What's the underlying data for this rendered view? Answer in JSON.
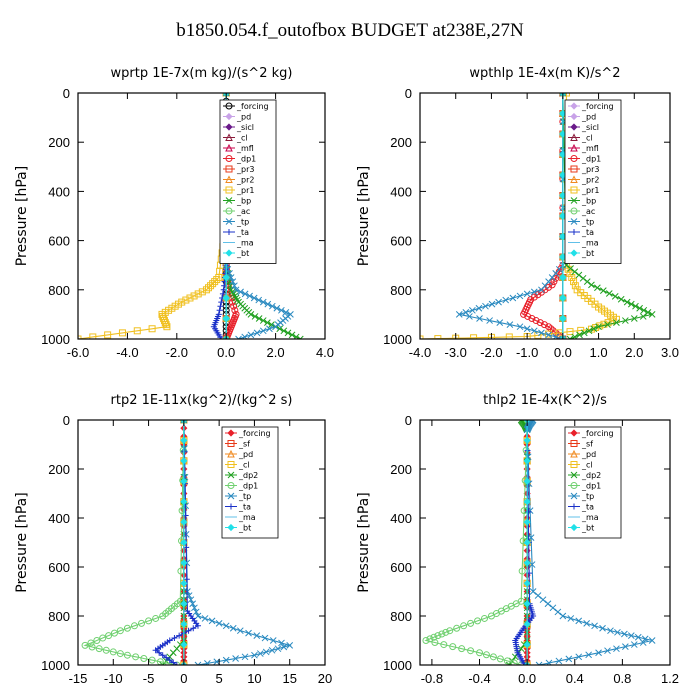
{
  "title": "b1850.054.f_outofbox  BUDGET at238E,27N",
  "chart_data": [
    {
      "type": "line",
      "title": "wprtp  1E-7x(m kg)/(s^2 kg)",
      "ylabel": "Pressure [hPa]",
      "xlim": [
        -6.0,
        4.0
      ],
      "ylim": [
        1000,
        0
      ],
      "xticks": [
        "-6.0",
        "-4.0",
        "-2.0",
        "0.0",
        "2.0",
        "4.0"
      ],
      "xtick_values": [
        -6,
        -4,
        -2,
        0,
        2,
        4
      ],
      "yticks": [
        0,
        200,
        400,
        600,
        800,
        1000
      ],
      "legend_position": "top-right",
      "series": [
        {
          "name": "_forcing",
          "color": "#000000",
          "marker": "circle",
          "p": [
            0,
            200,
            400,
            600,
            800,
            900,
            1000
          ],
          "x": [
            0,
            0,
            0,
            0,
            0,
            0,
            0
          ]
        },
        {
          "name": "_pd",
          "color": "#c8a2e8",
          "marker": "diamond",
          "p": [
            0,
            500,
            1000
          ],
          "x": [
            0,
            0,
            0
          ]
        },
        {
          "name": "_sicl",
          "color": "#6a1a8a",
          "marker": "diamond",
          "p": [
            0,
            500,
            1000
          ],
          "x": [
            0,
            0,
            0
          ]
        },
        {
          "name": "_cl",
          "color": "#8b1a3a",
          "marker": "triangle",
          "p": [
            0,
            500,
            1000
          ],
          "x": [
            0,
            0,
            0
          ]
        },
        {
          "name": "_mfl",
          "color": "#c8004a",
          "marker": "triangle",
          "p": [
            0,
            500,
            1000
          ],
          "x": [
            0,
            0,
            0
          ]
        },
        {
          "name": "_dp1",
          "color": "#e8202a",
          "marker": "circle",
          "p": [
            0,
            700,
            800,
            900,
            950,
            1000
          ],
          "x": [
            0,
            0,
            0.1,
            0.4,
            0.2,
            0
          ]
        },
        {
          "name": "_pr3",
          "color": "#e83a1a",
          "marker": "square",
          "p": [
            0,
            500,
            1000
          ],
          "x": [
            0,
            0,
            0
          ]
        },
        {
          "name": "_pr2",
          "color": "#f08a20",
          "marker": "triangle",
          "p": [
            0,
            500,
            1000
          ],
          "x": [
            0,
            0,
            0
          ]
        },
        {
          "name": "_pr1",
          "color": "#f0c020",
          "marker": "square",
          "p": [
            0,
            600,
            750,
            800,
            850,
            900,
            950,
            1000
          ],
          "x": [
            0,
            -0.1,
            -0.3,
            -0.8,
            -1.8,
            -2.6,
            -2.4,
            -6.0
          ]
        },
        {
          "name": "_bp",
          "color": "#20a020",
          "marker": "x",
          "p": [
            0,
            700,
            800,
            850,
            900,
            950,
            1000
          ],
          "x": [
            0,
            0,
            0.2,
            0.5,
            1.0,
            2.0,
            3.0
          ]
        },
        {
          "name": "_ac",
          "color": "#70d070",
          "marker": "circle",
          "p": [
            0,
            500,
            1000
          ],
          "x": [
            0,
            0,
            0
          ]
        },
        {
          "name": "_tp",
          "color": "#2a8ac0",
          "marker": "x",
          "p": [
            0,
            700,
            800,
            850,
            900,
            950,
            1000
          ],
          "x": [
            0,
            0,
            0.4,
            1.5,
            2.6,
            2.0,
            0.5
          ]
        },
        {
          "name": "_ta",
          "color": "#1a30c8",
          "marker": "plus",
          "p": [
            0,
            700,
            800,
            900,
            950,
            1000
          ],
          "x": [
            0,
            0,
            -0.1,
            -0.3,
            -0.5,
            -0.2
          ]
        },
        {
          "name": "_ma",
          "color": "#60c0e8",
          "marker": "dash",
          "p": [
            0,
            500,
            1000
          ],
          "x": [
            0,
            0,
            0
          ]
        },
        {
          "name": "_bt",
          "color": "#20e0e8",
          "marker": "diamond",
          "p": [
            0,
            500,
            1000
          ],
          "x": [
            0,
            0,
            0
          ]
        }
      ]
    },
    {
      "type": "line",
      "title": "wpthlp  1E-4x(m K)/s^2",
      "ylabel": "Pressure [hPa]",
      "xlim": [
        -4.0,
        3.0
      ],
      "ylim": [
        1000,
        0
      ],
      "xticks": [
        "-4.0",
        "-3.0",
        "-2.0",
        "-1.0",
        "0.0",
        "1.0",
        "2.0",
        "3.0"
      ],
      "xtick_values": [
        -4,
        -3,
        -2,
        -1,
        0,
        1,
        2,
        3
      ],
      "yticks": [
        0,
        200,
        400,
        600,
        800,
        1000
      ],
      "legend_position": "top-right",
      "series": [
        {
          "name": "_forcing",
          "color": "#c8a2e8",
          "marker": "diamond",
          "p": [
            0,
            500,
            1000
          ],
          "x": [
            0,
            0,
            0
          ]
        },
        {
          "name": "_pd",
          "color": "#c8a2e8",
          "marker": "diamond",
          "p": [
            0,
            500,
            1000
          ],
          "x": [
            0,
            0,
            0
          ]
        },
        {
          "name": "_sicl",
          "color": "#6a1a8a",
          "marker": "diamond",
          "p": [
            0,
            500,
            1000
          ],
          "x": [
            0,
            0,
            0
          ]
        },
        {
          "name": "_cl",
          "color": "#8b1a3a",
          "marker": "triangle",
          "p": [
            0,
            500,
            1000
          ],
          "x": [
            0,
            0,
            0
          ]
        },
        {
          "name": "_mfl",
          "color": "#c8004a",
          "marker": "triangle",
          "p": [
            0,
            500,
            1000
          ],
          "x": [
            0,
            0,
            0
          ]
        },
        {
          "name": "_dp1",
          "color": "#e8202a",
          "marker": "circle",
          "p": [
            0,
            700,
            780,
            840,
            900,
            950,
            1000
          ],
          "x": [
            0,
            0,
            -0.3,
            -0.9,
            -1.1,
            -0.4,
            0
          ]
        },
        {
          "name": "_pr3",
          "color": "#e83a1a",
          "marker": "square",
          "p": [
            0,
            500,
            1000
          ],
          "x": [
            0,
            0,
            0
          ]
        },
        {
          "name": "_pr2",
          "color": "#f08a20",
          "marker": "triangle",
          "p": [
            0,
            500,
            1000
          ],
          "x": [
            0,
            0,
            0
          ]
        },
        {
          "name": "_pr1",
          "color": "#f0c020",
          "marker": "square",
          "p": [
            0,
            700,
            800,
            870,
            920,
            960,
            990,
            1000
          ],
          "x": [
            0.1,
            0.1,
            0.4,
            1.0,
            1.5,
            0.8,
            -1.0,
            -4.0
          ]
        },
        {
          "name": "_bp",
          "color": "#20a020",
          "marker": "x",
          "p": [
            0,
            700,
            780,
            850,
            900,
            950,
            1000
          ],
          "x": [
            0,
            0.1,
            0.8,
            1.8,
            2.5,
            1.0,
            0.2
          ]
        },
        {
          "name": "_ac",
          "color": "#70d070",
          "marker": "circle",
          "p": [
            0,
            500,
            1000
          ],
          "x": [
            0,
            0,
            0
          ]
        },
        {
          "name": "_tp",
          "color": "#2a8ac0",
          "marker": "x",
          "p": [
            0,
            700,
            800,
            850,
            900,
            950,
            1000
          ],
          "x": [
            0,
            0,
            -0.6,
            -1.8,
            -2.9,
            -1.2,
            0
          ]
        },
        {
          "name": "_ta",
          "color": "#1a30c8",
          "marker": "plus",
          "p": [
            0,
            500,
            1000
          ],
          "x": [
            0,
            0,
            0
          ]
        },
        {
          "name": "_ma",
          "color": "#60c0e8",
          "marker": "dash",
          "p": [
            0,
            500,
            1000
          ],
          "x": [
            0,
            0,
            0
          ]
        },
        {
          "name": "_bt",
          "color": "#20e0e8",
          "marker": "diamond",
          "p": [
            0,
            500,
            1000
          ],
          "x": [
            0,
            0,
            0
          ]
        }
      ]
    },
    {
      "type": "line",
      "title": "rtp2  1E-11x(kg^2)/(kg^2 s)",
      "ylabel": "Pressure [hPa]",
      "xlim": [
        -15,
        20
      ],
      "ylim": [
        1000,
        0
      ],
      "xticks": [
        "-15",
        "-10",
        "-5",
        "0",
        "5",
        "10",
        "15",
        "20"
      ],
      "xtick_values": [
        -15,
        -10,
        -5,
        0,
        5,
        10,
        15,
        20
      ],
      "yticks": [
        0,
        200,
        400,
        600,
        800,
        1000
      ],
      "legend_position": "top-right",
      "series": [
        {
          "name": "_forcing",
          "color": "#e8202a",
          "marker": "diamond",
          "p": [
            0,
            200,
            400,
            600,
            800,
            900,
            1000
          ],
          "x": [
            0,
            0,
            0,
            0,
            0,
            0,
            0
          ]
        },
        {
          "name": "_sf",
          "color": "#e83a1a",
          "marker": "square",
          "p": [
            0,
            500,
            1000
          ],
          "x": [
            0,
            0,
            0
          ]
        },
        {
          "name": "_pd",
          "color": "#f08a20",
          "marker": "triangle",
          "p": [
            0,
            500,
            1000
          ],
          "x": [
            0,
            0,
            0
          ]
        },
        {
          "name": "_cl",
          "color": "#f0c020",
          "marker": "square",
          "p": [
            0,
            500,
            1000
          ],
          "x": [
            0,
            0,
            0
          ]
        },
        {
          "name": "_dp2",
          "color": "#20a020",
          "marker": "x",
          "p": [
            0,
            700,
            900,
            1000
          ],
          "x": [
            0,
            0,
            0,
            -3
          ]
        },
        {
          "name": "_dp1",
          "color": "#70d070",
          "marker": "circle",
          "p": [
            0,
            740,
            800,
            860,
            920,
            960,
            1000
          ],
          "x": [
            0,
            -0.5,
            -3,
            -9,
            -14,
            -8,
            -1
          ]
        },
        {
          "name": "_tp",
          "color": "#2a8ac0",
          "marker": "x",
          "p": [
            0,
            700,
            800,
            860,
            920,
            960,
            1000
          ],
          "x": [
            0,
            0.5,
            2,
            8,
            15,
            10,
            2
          ]
        },
        {
          "name": "_ta",
          "color": "#1a30c8",
          "marker": "plus",
          "p": [
            0,
            780,
            840,
            900,
            940,
            1000
          ],
          "x": [
            0,
            0.5,
            2,
            -2,
            -4,
            -1
          ]
        },
        {
          "name": "_ma",
          "color": "#60c0e8",
          "marker": "dash",
          "p": [
            0,
            500,
            1000
          ],
          "x": [
            0,
            0,
            0
          ]
        },
        {
          "name": "_bt",
          "color": "#20e0e8",
          "marker": "diamond",
          "p": [
            0,
            500,
            1000
          ],
          "x": [
            0,
            0,
            0
          ]
        }
      ]
    },
    {
      "type": "line",
      "title": "thlp2  1E-4x(K^2)/s",
      "ylabel": "Pressure [hPa]",
      "xlim": [
        -0.9,
        1.2
      ],
      "ylim": [
        1000,
        0
      ],
      "xticks": [
        "-0.8",
        "-0.4",
        "0.0",
        "0.4",
        "0.8",
        "1.2"
      ],
      "xtick_values": [
        -0.8,
        -0.4,
        0.0,
        0.4,
        0.8,
        1.2
      ],
      "yticks": [
        0,
        200,
        400,
        600,
        800,
        1000
      ],
      "legend_position": "top-right",
      "series": [
        {
          "name": "_forcing",
          "color": "#e8202a",
          "marker": "diamond",
          "p": [
            0,
            200,
            400,
            600,
            800,
            900,
            1000
          ],
          "x": [
            0,
            0,
            0,
            0,
            0,
            0,
            0
          ]
        },
        {
          "name": "_sf",
          "color": "#e83a1a",
          "marker": "square",
          "p": [
            0,
            500,
            1000
          ],
          "x": [
            0,
            0,
            0
          ]
        },
        {
          "name": "_pd",
          "color": "#f08a20",
          "marker": "triangle",
          "p": [
            0,
            500,
            1000
          ],
          "x": [
            0,
            0,
            0
          ]
        },
        {
          "name": "_cl",
          "color": "#f0c020",
          "marker": "square",
          "p": [
            0,
            500,
            1000
          ],
          "x": [
            0,
            0,
            0
          ]
        },
        {
          "name": "_dp2",
          "color": "#20a020",
          "marker": "x",
          "p": [
            0,
            20,
            40,
            700,
            900,
            1000
          ],
          "x": [
            -0.05,
            -0.02,
            0,
            0,
            0,
            -0.15
          ]
        },
        {
          "name": "_dp1",
          "color": "#70d070",
          "marker": "circle",
          "p": [
            0,
            740,
            800,
            860,
            900,
            950,
            1000
          ],
          "x": [
            0,
            -0.05,
            -0.3,
            -0.65,
            -0.85,
            -0.4,
            -0.05
          ]
        },
        {
          "name": "_tp",
          "color": "#2a8ac0",
          "marker": "x",
          "p": [
            0,
            20,
            40,
            700,
            800,
            860,
            900,
            950,
            1000
          ],
          "x": [
            0.05,
            0.02,
            0,
            0.05,
            0.3,
            0.7,
            1.05,
            0.6,
            0.1
          ]
        },
        {
          "name": "_ta",
          "color": "#1a30c8",
          "marker": "plus",
          "p": [
            0,
            750,
            800,
            850,
            900,
            950,
            1000
          ],
          "x": [
            0,
            0.02,
            0.05,
            -0.03,
            -0.1,
            -0.08,
            -0.02
          ]
        },
        {
          "name": "_ma",
          "color": "#60c0e8",
          "marker": "dash",
          "p": [
            0,
            500,
            1000
          ],
          "x": [
            0,
            0,
            0
          ]
        },
        {
          "name": "_bt",
          "color": "#20e0e8",
          "marker": "diamond",
          "p": [
            0,
            500,
            1000
          ],
          "x": [
            0,
            0,
            0
          ]
        }
      ]
    }
  ]
}
